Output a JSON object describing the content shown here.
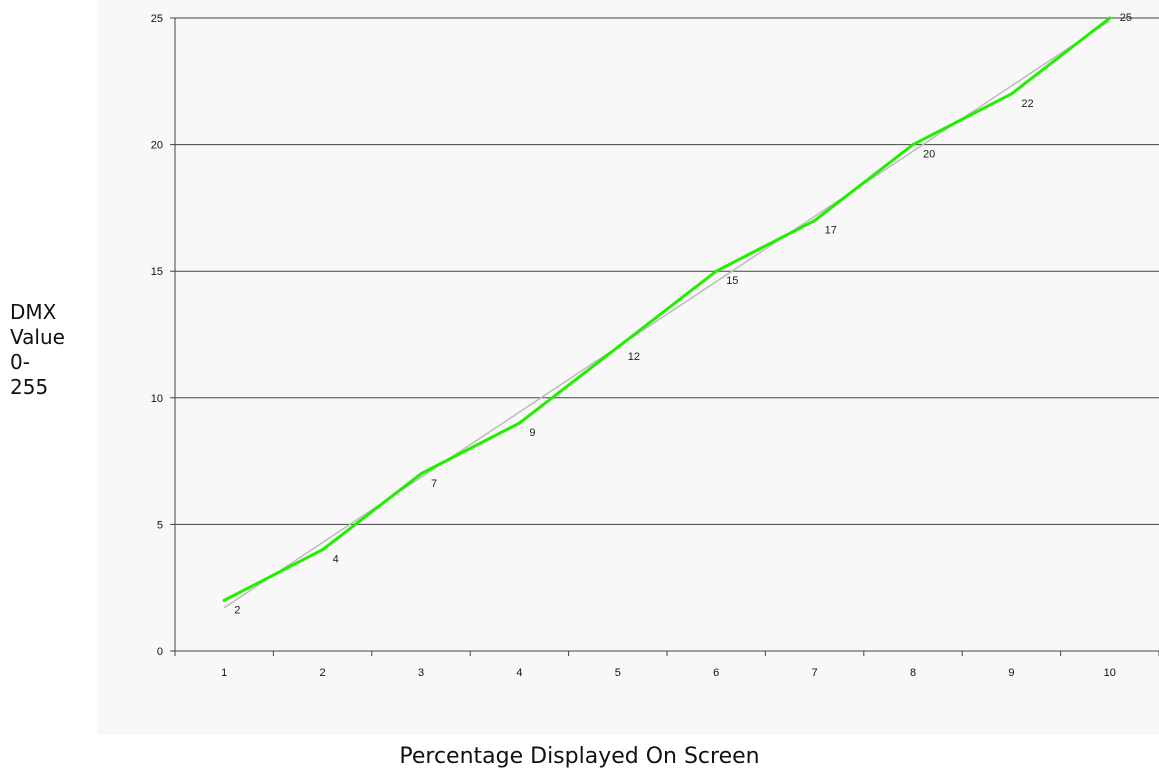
{
  "chart_data": {
    "type": "line",
    "title": "",
    "xlabel": "Percentage Displayed On Screen",
    "ylabel_lines": [
      "DMX",
      "Value",
      "0-",
      "255"
    ],
    "x": [
      1,
      2,
      3,
      4,
      5,
      6,
      7,
      8,
      9,
      10
    ],
    "y_ticks": [
      0,
      5,
      10,
      15,
      20,
      25
    ],
    "xlim": [
      0.5,
      10.5
    ],
    "ylim": [
      0,
      25
    ],
    "grid": "horizontal",
    "series": [
      {
        "values": [
          2,
          4,
          7,
          9,
          12,
          15,
          17,
          20,
          22,
          25
        ],
        "color": "#22ee00",
        "data_labels": [
          "2",
          "4",
          "7",
          "9",
          "12",
          "15",
          "17",
          "20",
          "22",
          "25"
        ]
      }
    ],
    "trendline": {
      "type": "linear",
      "color": "#bbbbbb"
    },
    "colors": {
      "background": "#f8f8f8",
      "gridline": "#444444",
      "axis": "#444444"
    }
  }
}
